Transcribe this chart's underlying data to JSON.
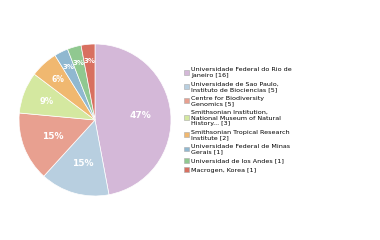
{
  "labels": [
    "Universidade Federal do Rio de\nJaneiro [16]",
    "Universidade de Sao Paulo,\nInstituto de Biociencias [5]",
    "Centre for Biodiversity\nGenomics [5]",
    "Smithsonian Institution,\nNational Museum of Natural\nHistory... [3]",
    "Smithsonian Tropical Research\nInstitute [2]",
    "Universidade Federal de Minas\nGerais [1]",
    "Universidad de los Andes [1]",
    "Macrogen, Korea [1]"
  ],
  "values": [
    16,
    5,
    5,
    3,
    2,
    1,
    1,
    1
  ],
  "colors": [
    "#d4b8d8",
    "#b8cfe0",
    "#e8a090",
    "#d4e8a0",
    "#f0b870",
    "#90b8d0",
    "#90c890",
    "#d87060"
  ],
  "startangle": 90
}
